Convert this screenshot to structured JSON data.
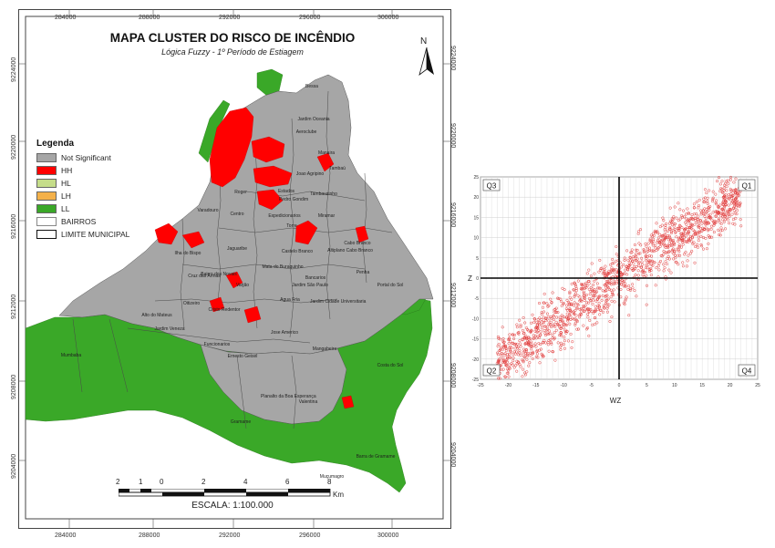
{
  "map": {
    "title": "MAPA CLUSTER DO RISCO DE INCÊNDIO",
    "subtitle": "Lógica Fuzzy - 1º Período de Estiagem",
    "north": "N",
    "coords_top": [
      "284000",
      "288000",
      "292000",
      "296000",
      "300000"
    ],
    "coords_bottom": [
      "284000",
      "288000",
      "292000",
      "296000",
      "300000"
    ],
    "coords_left": [
      "9224000",
      "9220000",
      "9216000",
      "9212000",
      "9208000",
      "9204000",
      "9200000"
    ],
    "coords_right": [
      "9224000",
      "9220000",
      "9216000",
      "9212000",
      "9208000",
      "9204000",
      "9200000"
    ],
    "legend": {
      "title": "Legenda",
      "items": [
        {
          "label": "Not Significant",
          "color": "#a6a6a6"
        },
        {
          "label": "HH",
          "color": "#ff0000"
        },
        {
          "label": "HL",
          "color": "#c5dd8a"
        },
        {
          "label": "LH",
          "color": "#f4b14a"
        },
        {
          "label": "LL",
          "color": "#3aa828"
        },
        {
          "label": "BAIRROS",
          "color": "#ffffff"
        },
        {
          "label": "LIMITE MUNICIPAL",
          "color": "#ffffff"
        }
      ]
    },
    "neighborhoods": [
      "Bessa",
      "Jardim Oceania",
      "Aeroclube",
      "Manaira",
      "Tambaú",
      "Joao Agripino",
      "Estados",
      "Pedro Gondim",
      "Tambauzinho",
      "Miramar",
      "Expedicionarios",
      "Torre",
      "Centro",
      "Varadouro",
      "Roger",
      "Ilha do Bispo",
      "Jaguaribe",
      "Cruz das Armas",
      "Oitizeiro",
      "Cristo Redentor",
      "Cabo Branco",
      "Castelo Branco",
      "Bancarios",
      "Jardim Cidade Universitaria",
      "Agua Fria",
      "Jose Americo",
      "Mangabeira",
      "Valentina",
      "Muçumagro",
      "Barra de Gramame",
      "Gramame",
      "Costa do Sol",
      "Ernesto Geisel",
      "Funcionarios",
      "Mumbaba",
      "Jardim Veneza",
      "Alto do Mateus",
      "Planalto da Boa Esperança",
      "Penha",
      "Portal do Sol",
      "Altiplano Cabo Branco",
      "Mata do Buraquinho",
      "Varjão",
      "Bairro dos Novais",
      "Jardim São Paulo"
    ],
    "scale_numbers": [
      "2",
      "1",
      "0",
      "2",
      "4",
      "6",
      "8"
    ],
    "scale_unit": "Km",
    "scale_text": "ESCALA: 1:100.000"
  },
  "chart_data": {
    "type": "scatter",
    "title": "",
    "xlabel": "WZ",
    "ylabel": "Z",
    "xlim": [
      -25,
      25
    ],
    "ylim": [
      -25,
      25
    ],
    "quadrants": [
      "Q3",
      "Q1",
      "Q2",
      "Q4"
    ],
    "y_ticks": [
      -25,
      -20,
      -15,
      -10,
      -5,
      0,
      5,
      10,
      15,
      20,
      25
    ],
    "x_ticks": [
      -25,
      -20,
      -15,
      -10,
      -5,
      0,
      5,
      10,
      15,
      20,
      25
    ],
    "series": [
      {
        "color": "#e23b3b",
        "trend": {
          "slope": 0.95,
          "intercept": 0,
          "spread": 5
        },
        "x_range": [
          -22,
          22
        ]
      }
    ]
  }
}
